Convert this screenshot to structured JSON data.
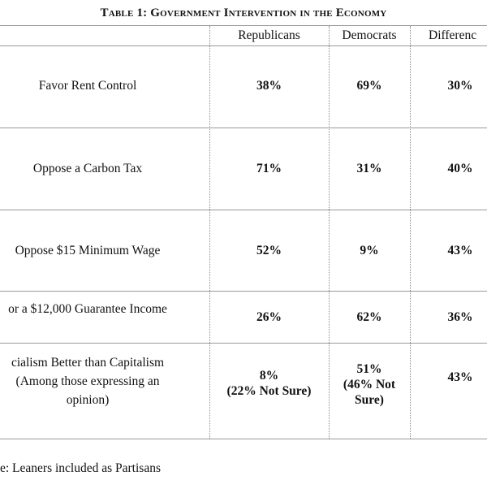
{
  "table": {
    "title": "Table 1: Government Intervention in the Economy",
    "header": [
      "Republicans",
      "Democrats",
      "Differenc"
    ],
    "rows": [
      {
        "label": [
          "Favor Rent Control"
        ],
        "values": [
          [
            "38%"
          ],
          [
            "69%"
          ],
          [
            "30%"
          ]
        ]
      },
      {
        "label": [
          "Oppose a Carbon Tax"
        ],
        "values": [
          [
            "71%"
          ],
          [
            "31%"
          ],
          [
            "40%"
          ]
        ]
      },
      {
        "label": [
          "Oppose $15 Minimum Wage"
        ],
        "values": [
          [
            "52%"
          ],
          [
            "9%"
          ],
          [
            "43%"
          ]
        ]
      },
      {
        "label": [
          "or a $12,000 Guarantee Income"
        ],
        "values": [
          [
            "26%"
          ],
          [
            "62%"
          ],
          [
            "36%"
          ]
        ]
      },
      {
        "label": [
          "cialism Better than Capitalism",
          "(Among those expressing an",
          "opinion)"
        ],
        "values": [
          [
            "8%",
            "(22% Not Sure)"
          ],
          [
            "51%",
            "(46% Not",
            "Sure)"
          ],
          [
            "43%"
          ]
        ]
      }
    ],
    "note": "e: Leaners included as Partisans"
  }
}
